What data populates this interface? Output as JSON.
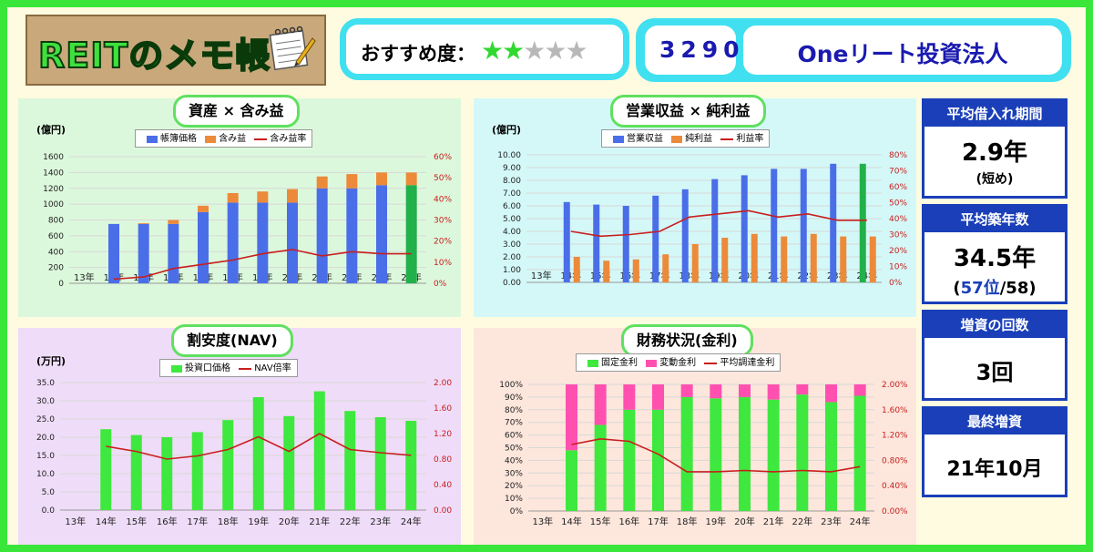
{
  "header": {
    "logo": "REITのメモ帳",
    "recommend_label": "おすすめ度：",
    "stars_filled": 2,
    "stars_total": 5,
    "code": "3290",
    "name": "Oneリート投資法人"
  },
  "panels": {
    "p1": {
      "title": "資産 × 含み益",
      "unit": "(億円)",
      "legend": [
        "帳簿価格",
        "含み益",
        "含み益率"
      ]
    },
    "p2": {
      "title": "営業収益 × 純利益",
      "unit": "(億円)",
      "legend": [
        "営業収益",
        "純利益",
        "利益率"
      ]
    },
    "p3": {
      "title": "割安度(NAV)",
      "unit": "(万円)",
      "legend": [
        "投資口価格",
        "NAV倍率"
      ]
    },
    "p4": {
      "title": "財務状況(金利)",
      "unit": "",
      "legend": [
        "固定金利",
        "変動金利",
        "平均調達金利"
      ]
    }
  },
  "side": {
    "borrow": {
      "label": "平均借入れ期間",
      "value": "2.9年",
      "note": "(短め)"
    },
    "age": {
      "label": "平均築年数",
      "value": "34.5年",
      "rank_open": "(",
      "rank": "57位",
      "rank_close": "/58)"
    },
    "inc_count": {
      "label": "増資の回数",
      "value": "3回"
    },
    "last_inc": {
      "label": "最終増資",
      "value": "21年10月"
    }
  },
  "colors": {
    "blue": "#4a6ee8",
    "orange": "#ec8a3a",
    "red": "#c81e1e",
    "green": "#3ee83e",
    "dgreen": "#22b04a",
    "pink": "#ff50b0"
  },
  "chart_data": [
    {
      "type": "bar",
      "categories": [
        "13年",
        "14年",
        "15年",
        "16年",
        "17年",
        "18年",
        "19年",
        "20年",
        "21年",
        "22年",
        "23年",
        "24年"
      ],
      "series": [
        {
          "name": "帳簿価格",
          "values": [
            0,
            750,
            750,
            750,
            900,
            1020,
            1020,
            1020,
            1200,
            1200,
            1240,
            1240
          ]
        },
        {
          "name": "含み益",
          "values": [
            0,
            0,
            10,
            50,
            80,
            120,
            140,
            170,
            150,
            180,
            160,
            160
          ]
        },
        {
          "name": "含み益率",
          "values": [
            null,
            2,
            3,
            7,
            9,
            11,
            14,
            16,
            13,
            15,
            14,
            14
          ]
        }
      ],
      "ylim": [
        0,
        1600
      ],
      "y2lim": [
        0,
        60
      ],
      "yticks": [
        0,
        200,
        400,
        600,
        800,
        1000,
        1200,
        1400,
        1600
      ],
      "y2ticks": [
        "0%",
        "10%",
        "20%",
        "30%",
        "40%",
        "50%",
        "60%"
      ]
    },
    {
      "type": "bar",
      "categories": [
        "13年",
        "14年",
        "15年",
        "16年",
        "17年",
        "18年",
        "19年",
        "20年",
        "21年",
        "22年",
        "23年",
        "24年"
      ],
      "series": [
        {
          "name": "営業収益",
          "values": [
            0,
            6.3,
            6.1,
            6.0,
            6.8,
            7.3,
            8.1,
            8.4,
            8.9,
            8.9,
            9.3,
            9.3
          ]
        },
        {
          "name": "純利益",
          "values": [
            0,
            2.0,
            1.7,
            1.8,
            2.2,
            3.0,
            3.5,
            3.8,
            3.6,
            3.8,
            3.6,
            3.6
          ]
        },
        {
          "name": "利益率",
          "values": [
            null,
            32,
            29,
            30,
            32,
            41,
            43,
            45,
            41,
            43,
            39,
            39
          ]
        }
      ],
      "ylim": [
        0,
        10
      ],
      "y2lim": [
        0,
        80
      ],
      "yticks": [
        "0.00",
        "1.00",
        "2.00",
        "3.00",
        "4.00",
        "5.00",
        "6.00",
        "7.00",
        "8.00",
        "9.00",
        "10.00"
      ],
      "y2ticks": [
        "0%",
        "10%",
        "20%",
        "30%",
        "40%",
        "50%",
        "60%",
        "70%",
        "80%"
      ]
    },
    {
      "type": "bar",
      "categories": [
        "13年",
        "14年",
        "15年",
        "16年",
        "17年",
        "18年",
        "19年",
        "20年",
        "21年",
        "22年",
        "23年",
        "24年"
      ],
      "series": [
        {
          "name": "投資口価格",
          "values": [
            0,
            22.2,
            20.6,
            20.0,
            21.4,
            24.7,
            31.0,
            25.8,
            32.6,
            27.2,
            25.5,
            24.5
          ]
        },
        {
          "name": "NAV倍率",
          "values": [
            null,
            1.0,
            0.92,
            0.8,
            0.85,
            0.95,
            1.15,
            0.92,
            1.2,
            0.95,
            0.9,
            0.86
          ]
        }
      ],
      "ylim": [
        0,
        35
      ],
      "y2lim": [
        0,
        2
      ],
      "yticks": [
        "0.0",
        "5.0",
        "10.0",
        "15.0",
        "20.0",
        "25.0",
        "30.0",
        "35.0"
      ],
      "y2ticks": [
        "0.00",
        "0.40",
        "0.80",
        "1.20",
        "1.60",
        "2.00"
      ]
    },
    {
      "type": "bar",
      "categories": [
        "13年",
        "14年",
        "15年",
        "16年",
        "17年",
        "18年",
        "19年",
        "20年",
        "21年",
        "22年",
        "23年",
        "24年"
      ],
      "series": [
        {
          "name": "固定金利",
          "values": [
            0,
            48,
            68,
            80,
            80,
            90,
            89,
            90,
            88,
            92,
            86,
            91
          ]
        },
        {
          "name": "変動金利",
          "values": [
            0,
            52,
            32,
            20,
            20,
            10,
            11,
            10,
            12,
            8,
            14,
            9
          ]
        },
        {
          "name": "平均調達金利",
          "values": [
            null,
            1.05,
            1.14,
            1.1,
            0.9,
            0.62,
            0.62,
            0.64,
            0.62,
            0.64,
            0.62,
            0.7
          ]
        }
      ],
      "ylim": [
        0,
        100
      ],
      "y2lim": [
        0,
        2
      ],
      "yticks": [
        "0%",
        "10%",
        "20%",
        "30%",
        "40%",
        "50%",
        "60%",
        "70%",
        "80%",
        "90%",
        "100%"
      ],
      "y2ticks": [
        "0.00%",
        "0.40%",
        "0.80%",
        "1.20%",
        "1.60%",
        "2.00%"
      ]
    }
  ]
}
